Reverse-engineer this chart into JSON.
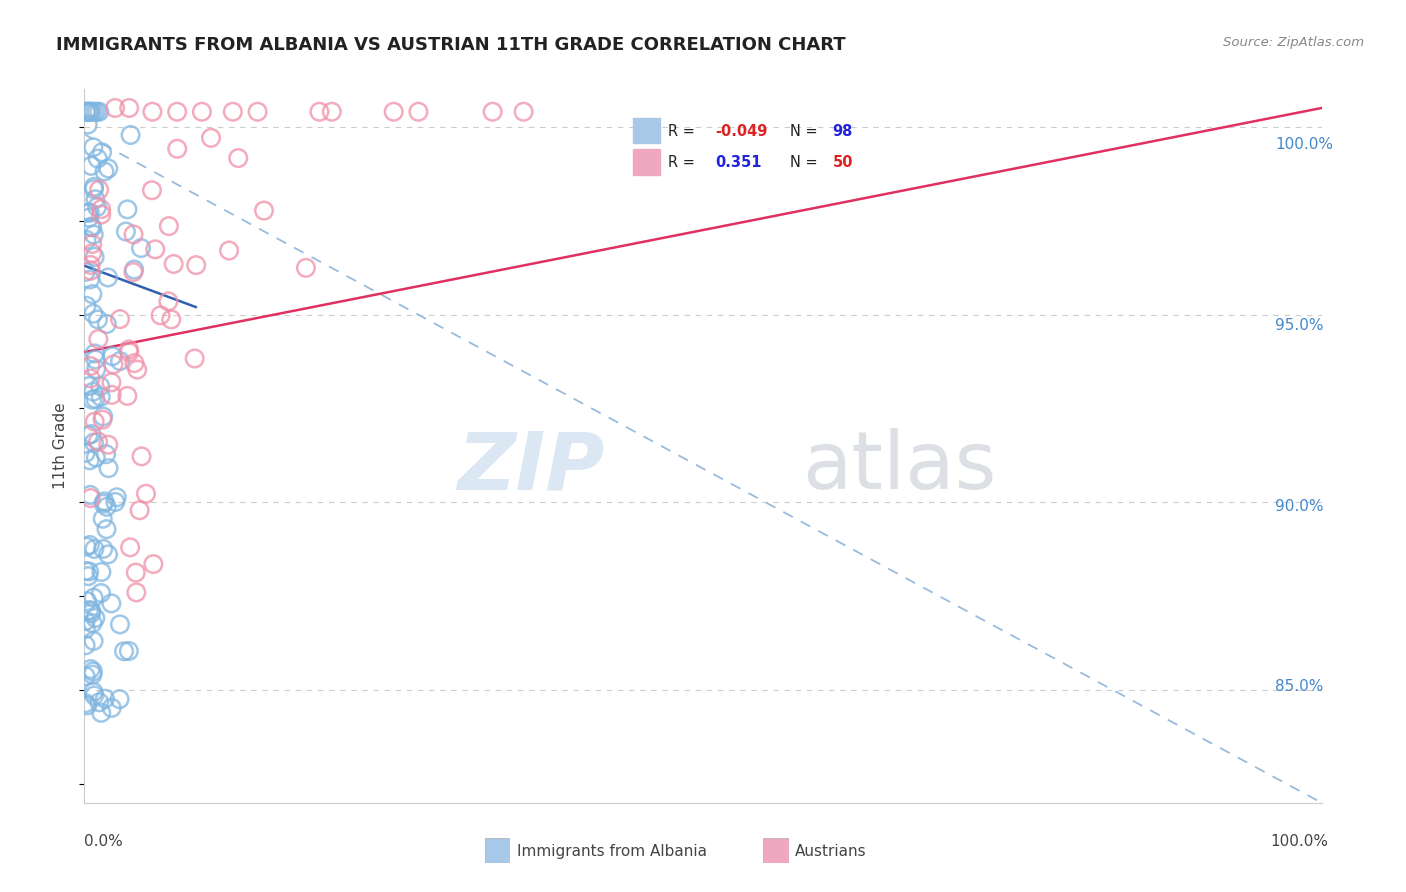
{
  "title": "IMMIGRANTS FROM ALBANIA VS AUSTRIAN 11TH GRADE CORRELATION CHART",
  "source_text": "Source: ZipAtlas.com",
  "ylabel": "11th Grade",
  "xlim": [
    0.0,
    1.0
  ],
  "ylim": [
    0.82,
    1.01
  ],
  "ytick_vals": [
    0.85,
    0.9,
    0.95,
    1.0
  ],
  "ytick_labels": [
    "85.0%",
    "90.0%",
    "95.0%",
    "100.0%"
  ],
  "blue_color": "#7fb5e0",
  "pink_color": "#f090a8",
  "blue_line_color": "#3060b0",
  "pink_line_color": "#e03060",
  "dashed_color": "#99bbdd",
  "watermark_zip": "ZIP",
  "watermark_atlas": "atlas",
  "legend_border": "#cccccc",
  "r_blue": "-0.049",
  "n_blue": "98",
  "r_pink": "0.351",
  "n_pink": "50",
  "r_color_blue": "#dd2222",
  "n_color_blue": "#2222dd",
  "r_color_pink": "#2222dd",
  "n_color_pink": "#dd2222"
}
